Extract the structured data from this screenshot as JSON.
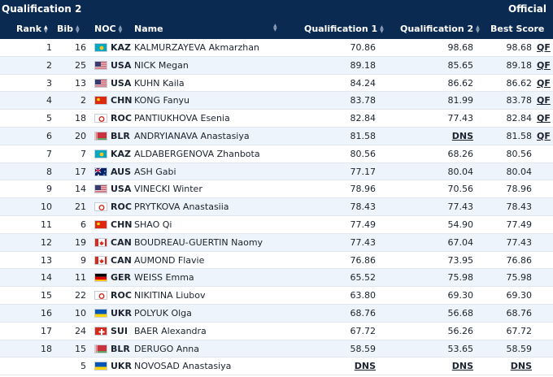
{
  "header": {
    "title": "Qualification 2",
    "status": "Official"
  },
  "columns": {
    "rank": "Rank",
    "bib": "Bib",
    "noc": "NOC",
    "name": "Name",
    "q1": "Qualification 1",
    "q2": "Qualification 2",
    "best": "Best Score"
  },
  "rows": [
    {
      "rank": "1",
      "bib": "16",
      "noc": "KAZ",
      "name": "KALMURZAYEVA Akmarzhan",
      "q1": "70.86",
      "q2": "98.68",
      "best": "98.68",
      "qf": "QF"
    },
    {
      "rank": "2",
      "bib": "25",
      "noc": "USA",
      "name": "NICK Megan",
      "q1": "89.18",
      "q2": "85.65",
      "best": "89.18",
      "qf": "QF"
    },
    {
      "rank": "3",
      "bib": "13",
      "noc": "USA",
      "name": "KUHN Kaila",
      "q1": "84.24",
      "q2": "86.62",
      "best": "86.62",
      "qf": "QF"
    },
    {
      "rank": "4",
      "bib": "2",
      "noc": "CHN",
      "name": "KONG Fanyu",
      "q1": "83.78",
      "q2": "81.99",
      "best": "83.78",
      "qf": "QF"
    },
    {
      "rank": "5",
      "bib": "18",
      "noc": "ROC",
      "name": "PANTIUKHOVA Esenia",
      "q1": "82.84",
      "q2": "77.43",
      "best": "82.84",
      "qf": "QF"
    },
    {
      "rank": "6",
      "bib": "20",
      "noc": "BLR",
      "name": "ANDRYIANAVA Anastasiya",
      "q1": "81.58",
      "q2": "DNS",
      "best": "81.58",
      "qf": "QF"
    },
    {
      "rank": "7",
      "bib": "7",
      "noc": "KAZ",
      "name": "ALDABERGENOVA Zhanbota",
      "q1": "80.56",
      "q2": "68.26",
      "best": "80.56",
      "qf": ""
    },
    {
      "rank": "8",
      "bib": "17",
      "noc": "AUS",
      "name": "ASH Gabi",
      "q1": "77.17",
      "q2": "80.04",
      "best": "80.04",
      "qf": ""
    },
    {
      "rank": "9",
      "bib": "14",
      "noc": "USA",
      "name": "VINECKI Winter",
      "q1": "78.96",
      "q2": "70.56",
      "best": "78.96",
      "qf": ""
    },
    {
      "rank": "10",
      "bib": "21",
      "noc": "ROC",
      "name": "PRYTKOVA Anastasiia",
      "q1": "78.43",
      "q2": "77.43",
      "best": "78.43",
      "qf": ""
    },
    {
      "rank": "11",
      "bib": "6",
      "noc": "CHN",
      "name": "SHAO Qi",
      "q1": "77.49",
      "q2": "54.90",
      "best": "77.49",
      "qf": ""
    },
    {
      "rank": "12",
      "bib": "19",
      "noc": "CAN",
      "name": "BOUDREAU-GUERTIN Naomy",
      "q1": "77.43",
      "q2": "67.04",
      "best": "77.43",
      "qf": ""
    },
    {
      "rank": "13",
      "bib": "9",
      "noc": "CAN",
      "name": "AUMOND Flavie",
      "q1": "76.86",
      "q2": "73.95",
      "best": "76.86",
      "qf": ""
    },
    {
      "rank": "14",
      "bib": "11",
      "noc": "GER",
      "name": "WEISS Emma",
      "q1": "65.52",
      "q2": "75.98",
      "best": "75.98",
      "qf": ""
    },
    {
      "rank": "15",
      "bib": "22",
      "noc": "ROC",
      "name": "NIKITINA Liubov",
      "q1": "63.80",
      "q2": "69.30",
      "best": "69.30",
      "qf": ""
    },
    {
      "rank": "16",
      "bib": "10",
      "noc": "UKR",
      "name": "POLYUK Olga",
      "q1": "68.76",
      "q2": "56.68",
      "best": "68.76",
      "qf": ""
    },
    {
      "rank": "17",
      "bib": "24",
      "noc": "SUI",
      "name": "BAER Alexandra",
      "q1": "67.72",
      "q2": "56.26",
      "best": "67.72",
      "qf": ""
    },
    {
      "rank": "18",
      "bib": "15",
      "noc": "BLR",
      "name": "DERUGO Anna",
      "q1": "58.59",
      "q2": "53.65",
      "best": "58.59",
      "qf": ""
    },
    {
      "rank": "",
      "bib": "5",
      "noc": "UKR",
      "name": "NOVOSAD Anastasiya",
      "q1": "DNS",
      "q2": "DNS",
      "best": "DNS",
      "qf": ""
    }
  ],
  "flag_colors": {
    "KAZ": [
      "#00a8c6"
    ],
    "USA": [
      "#b22234",
      "#ffffff",
      "#3c3b6e"
    ],
    "CHN": [
      "#de2910",
      "#ffde00"
    ],
    "ROC": [
      "#ffffff",
      "#d52b1e"
    ],
    "BLR": [
      "#c8313e",
      "#4aa657",
      "#ffffff"
    ],
    "AUS": [
      "#012169",
      "#ffffff",
      "#e4002b"
    ],
    "CAN": [
      "#d52b1e",
      "#ffffff"
    ],
    "GER": [
      "#000000",
      "#dd0000",
      "#ffce00"
    ],
    "UKR": [
      "#0057b7",
      "#ffd700"
    ],
    "SUI": [
      "#d52b1e",
      "#ffffff"
    ]
  }
}
